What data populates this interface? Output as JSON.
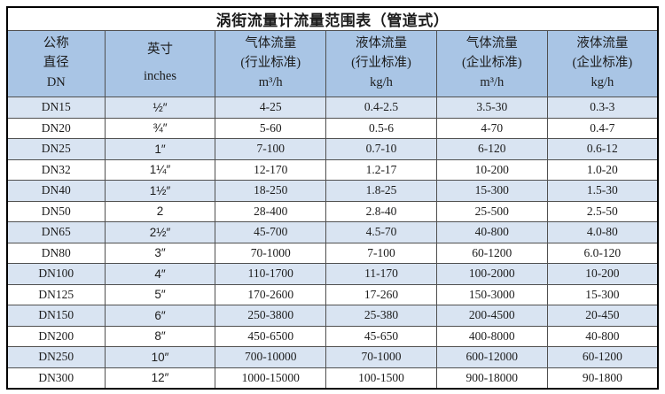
{
  "title": "涡街流量计流量范围表（管道式）",
  "colors": {
    "header_bg": "#a9c5e5",
    "alt_row_bg": "#d9e4f2",
    "grid_line": "#505050",
    "outer_border": "#000000",
    "text": "#1c1c1c"
  },
  "table": {
    "columns": [
      {
        "lines": [
          "公称",
          "直径",
          "DN"
        ]
      },
      {
        "lines": [
          "英寸",
          "inches"
        ]
      },
      {
        "lines": [
          "气体流量",
          "(行业标准)",
          "m³/h"
        ]
      },
      {
        "lines": [
          "液体流量",
          "(行业标准)",
          "kg/h"
        ]
      },
      {
        "lines": [
          "气体流量",
          "(企业标准)",
          "m³/h"
        ]
      },
      {
        "lines": [
          "液体流量",
          "(企业标准)",
          "kg/h"
        ]
      }
    ],
    "rows": [
      [
        "DN15",
        "½″",
        "4-25",
        "0.4-2.5",
        "3.5-30",
        "0.3-3"
      ],
      [
        "DN20",
        "¾″",
        "5-60",
        "0.5-6",
        "4-70",
        "0.4-7"
      ],
      [
        "DN25",
        "1″",
        "7-100",
        "0.7-10",
        "6-120",
        "0.6-12"
      ],
      [
        "DN32",
        "1¼″",
        "12-170",
        "1.2-17",
        "10-200",
        "1.0-20"
      ],
      [
        "DN40",
        "1½″",
        "18-250",
        "1.8-25",
        "15-300",
        "1.5-30"
      ],
      [
        "DN50",
        "2",
        "28-400",
        "2.8-40",
        "25-500",
        "2.5-50"
      ],
      [
        "DN65",
        "2½″",
        "45-700",
        "4.5-70",
        "40-800",
        "4.0-80"
      ],
      [
        "DN80",
        "3″",
        "70-1000",
        "7-100",
        "60-1200",
        "6.0-120"
      ],
      [
        "DN100",
        "4″",
        "110-1700",
        "11-170",
        "100-2000",
        "10-200"
      ],
      [
        "DN125",
        "5″",
        "170-2600",
        "17-260",
        "150-3000",
        "15-300"
      ],
      [
        "DN150",
        "6″",
        "250-3800",
        "25-380",
        "200-4500",
        "20-450"
      ],
      [
        "DN200",
        "8″",
        "450-6500",
        "45-650",
        "400-8000",
        "40-800"
      ],
      [
        "DN250",
        "10″",
        "700-10000",
        "70-1000",
        "600-12000",
        "60-1200"
      ],
      [
        "DN300",
        "12″",
        "1000-15000",
        "100-1500",
        "900-18000",
        "90-1800"
      ]
    ]
  },
  "chart_data": {
    "type": "table",
    "title": "涡街流量计流量范围表（管道式）",
    "columns": [
      "公称直径 DN",
      "英寸 inches",
      "气体流量 (行业标准) m³/h",
      "液体流量 (行业标准) kg/h",
      "气体流量 (企业标准) m³/h",
      "液体流量 (企业标准) kg/h"
    ],
    "rows": [
      [
        "DN15",
        "½″",
        "4-25",
        "0.4-2.5",
        "3.5-30",
        "0.3-3"
      ],
      [
        "DN20",
        "¾″",
        "5-60",
        "0.5-6",
        "4-70",
        "0.4-7"
      ],
      [
        "DN25",
        "1″",
        "7-100",
        "0.7-10",
        "6-120",
        "0.6-12"
      ],
      [
        "DN32",
        "1¼″",
        "12-170",
        "1.2-17",
        "10-200",
        "1.0-20"
      ],
      [
        "DN40",
        "1½″",
        "18-250",
        "1.8-25",
        "15-300",
        "1.5-30"
      ],
      [
        "DN50",
        "2",
        "28-400",
        "2.8-40",
        "25-500",
        "2.5-50"
      ],
      [
        "DN65",
        "2½″",
        "45-700",
        "4.5-70",
        "40-800",
        "4.0-80"
      ],
      [
        "DN80",
        "3″",
        "70-1000",
        "7-100",
        "60-1200",
        "6.0-120"
      ],
      [
        "DN100",
        "4″",
        "110-1700",
        "11-170",
        "100-2000",
        "10-200"
      ],
      [
        "DN125",
        "5″",
        "170-2600",
        "17-260",
        "150-3000",
        "15-300"
      ],
      [
        "DN150",
        "6″",
        "250-3800",
        "25-380",
        "200-4500",
        "20-450"
      ],
      [
        "DN200",
        "8″",
        "450-6500",
        "45-650",
        "400-8000",
        "40-800"
      ],
      [
        "DN250",
        "10″",
        "700-10000",
        "70-1000",
        "600-12000",
        "60-1200"
      ],
      [
        "DN300",
        "12″",
        "1000-15000",
        "100-1500",
        "900-18000",
        "90-1800"
      ]
    ],
    "layout_hints": {
      "title_row_merged": true,
      "alternating_row_shading": "rows DN15, DN25, DN40, DN65, DN100, DN150, DN250 shaded light blue",
      "header_background": "#a9c5e5",
      "grid": true
    }
  }
}
